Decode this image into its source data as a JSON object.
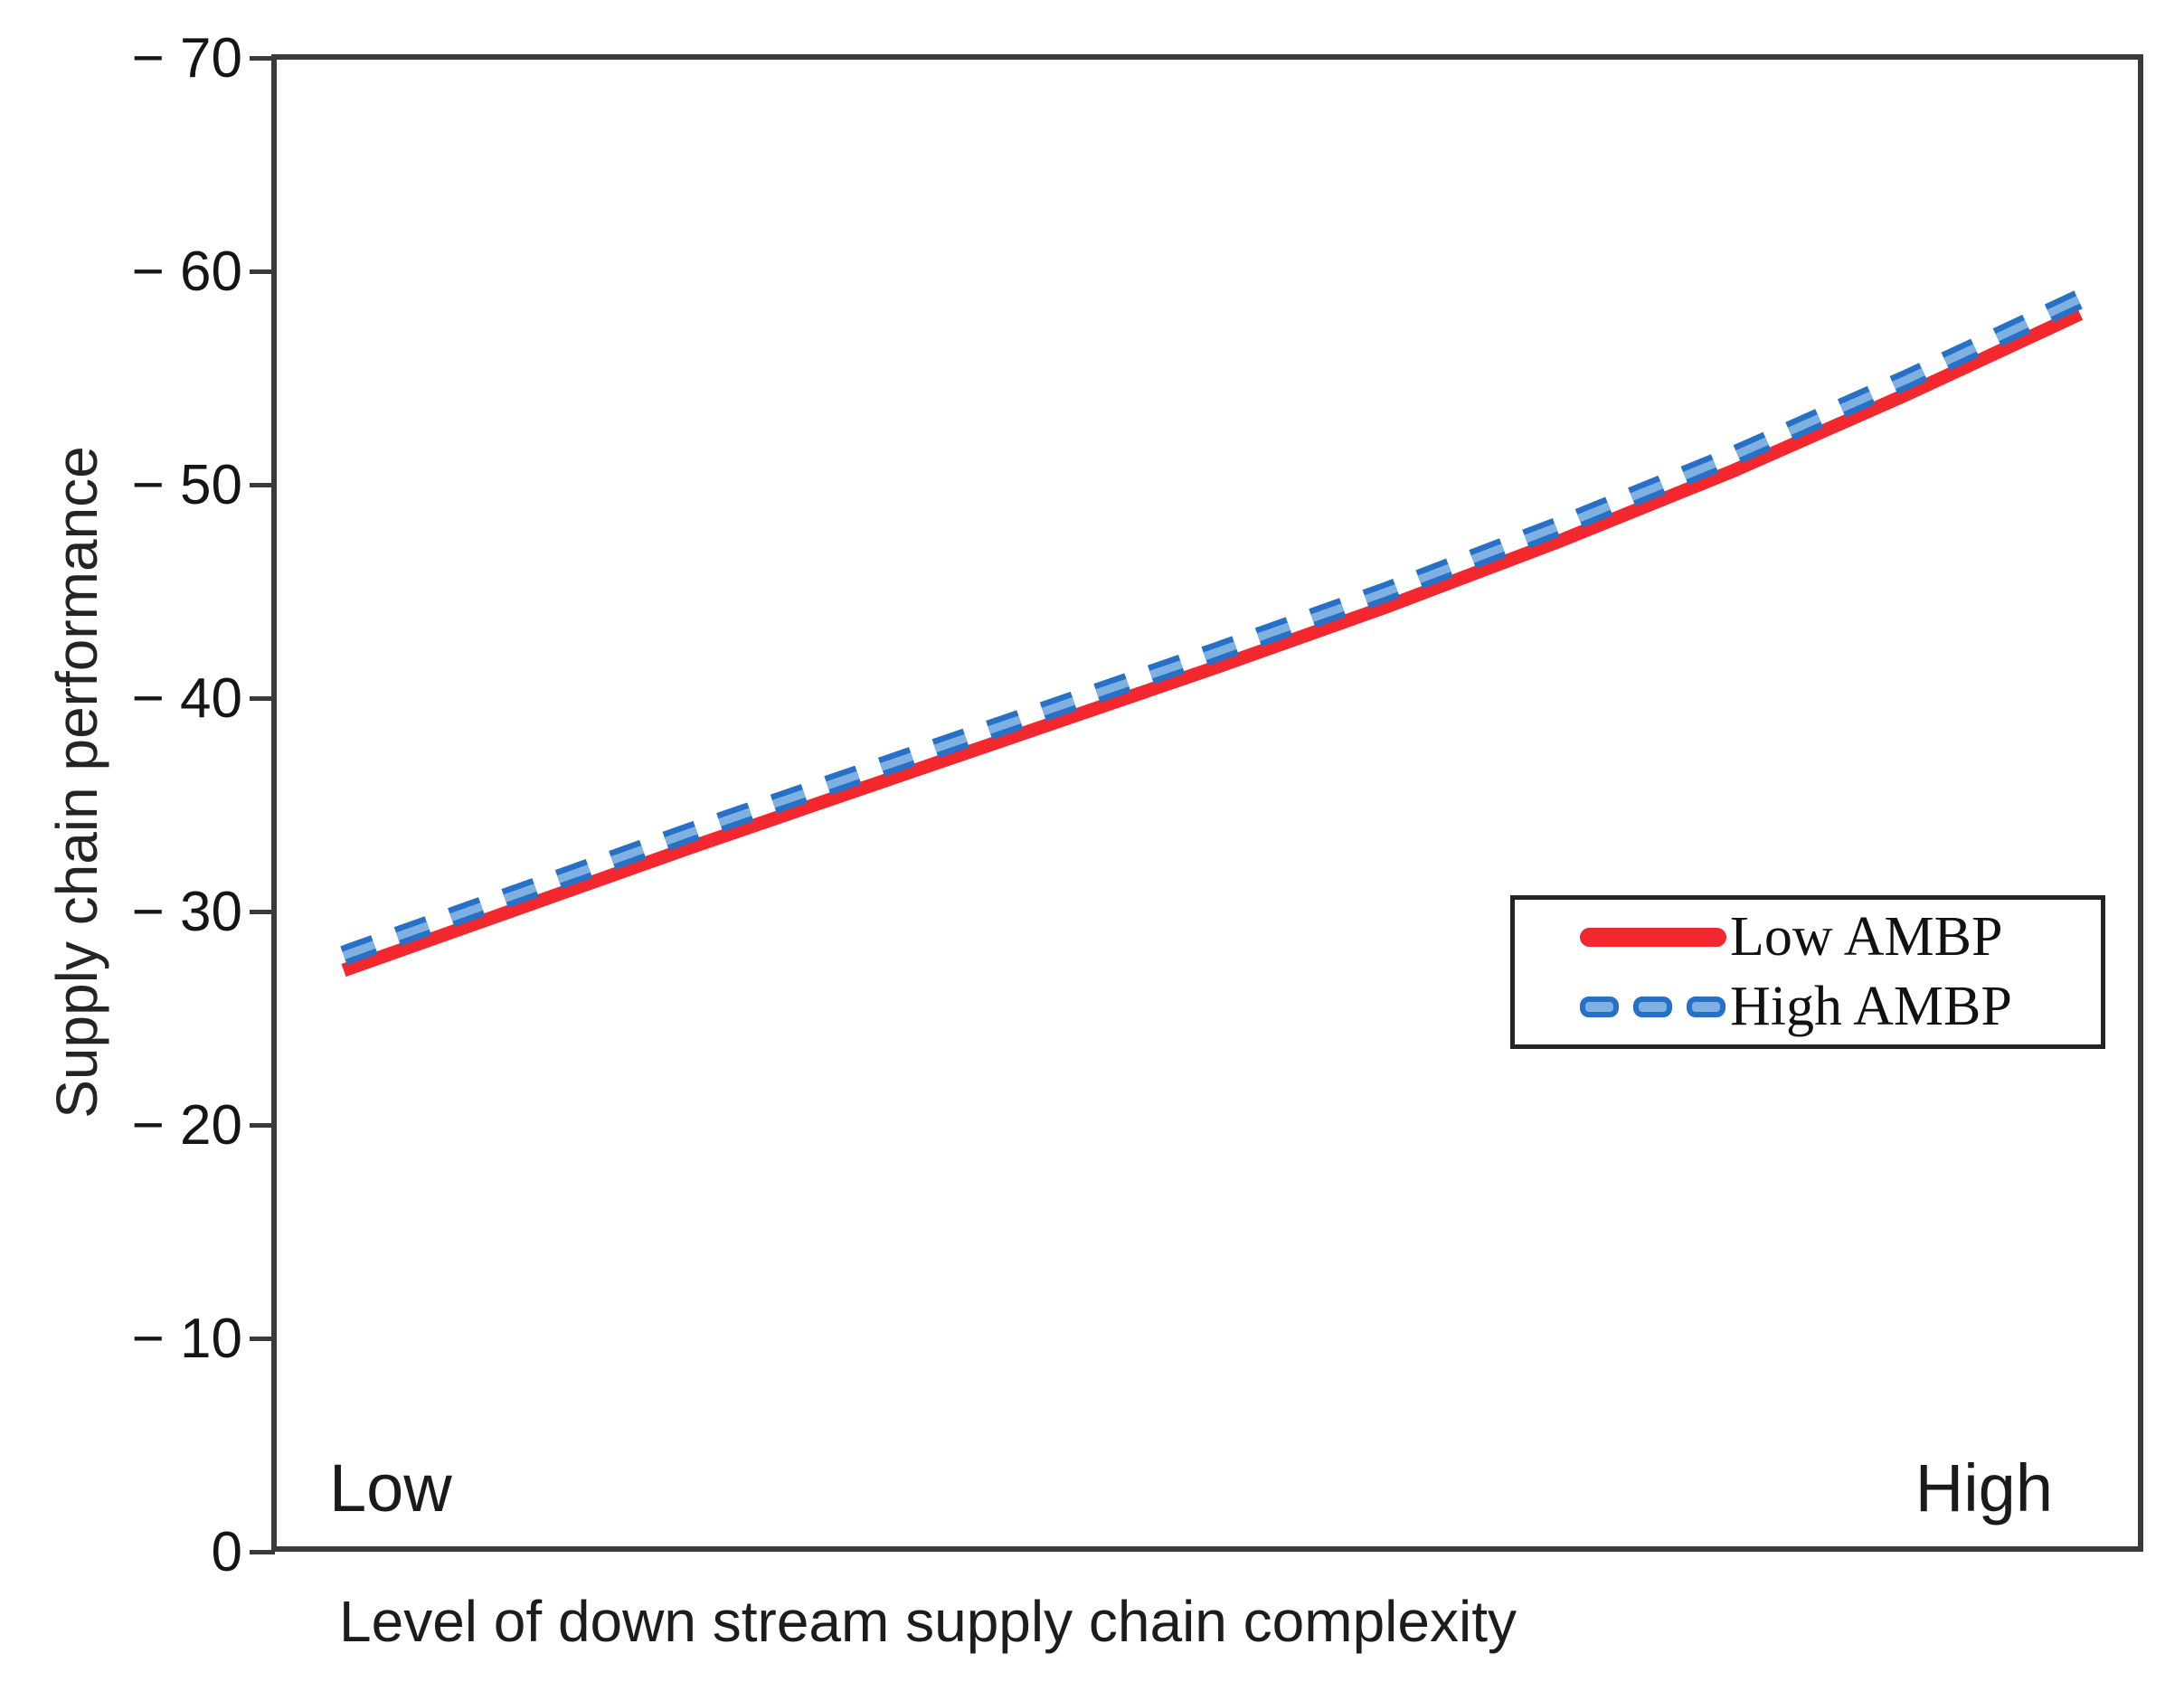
{
  "chart_data": {
    "type": "line",
    "title": "",
    "xlabel": "Level of down stream supply chain complexity",
    "ylabel": "Supply chain performance",
    "x_axis": {
      "left_label": "Low",
      "right_label": "High",
      "ticks_shown": false
    },
    "y_axis": {
      "ticks_top_to_bottom": [
        "− 70",
        "− 60",
        "− 50",
        "− 40",
        "− 30",
        "− 20",
        "− 10",
        "0"
      ],
      "ylim": [
        0,
        70
      ],
      "grid": false
    },
    "x": [
      0,
      0.1,
      0.2,
      0.3,
      0.4,
      0.5,
      0.6,
      0.7,
      0.8,
      0.9,
      1.0
    ],
    "series": [
      {
        "name": "Low AMBP",
        "style": "solid",
        "color": "#f2282e",
        "values": [
          27.1,
          30.0,
          32.9,
          35.7,
          38.5,
          41.3,
          44.2,
          47.3,
          50.6,
          54.2,
          58.0
        ]
      },
      {
        "name": "High AMBP",
        "style": "dashed",
        "color": "#2671c5",
        "color_inner": "#7fb0e2",
        "values": [
          27.8,
          30.7,
          33.6,
          36.4,
          39.2,
          42.0,
          44.9,
          48.0,
          51.3,
          54.9,
          58.7
        ]
      }
    ],
    "legend_position": "center-right",
    "axis_color": "#3a3a3a"
  }
}
